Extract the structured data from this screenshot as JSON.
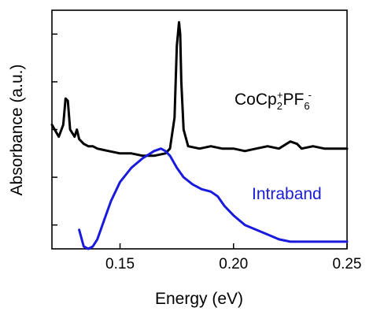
{
  "chart_data": {
    "type": "line",
    "title": "",
    "xlabel": "Energy (eV)",
    "ylabel": "Absorbance (a.u.)",
    "xlim": [
      0.12,
      0.25
    ],
    "ylim": [
      0,
      1
    ],
    "x_ticks": [
      0.15,
      0.2,
      0.25
    ],
    "x_tick_labels": [
      "0.15",
      "0.20",
      "0.25"
    ],
    "y_ticks": [
      0.1,
      0.3,
      0.5,
      0.7,
      0.9
    ],
    "y_tick_labels": [],
    "grid": false,
    "legend": "none",
    "series": [
      {
        "name": "CoCp2+PF6-",
        "label_parts": {
          "main": "CoCp",
          "sub1": "2",
          "sup1": "+",
          "mid": "PF",
          "sub2": "6",
          "sup2": "-"
        },
        "color": "#000000",
        "x": [
          0.12,
          0.123,
          0.125,
          0.126,
          0.127,
          0.128,
          0.13,
          0.131,
          0.132,
          0.134,
          0.136,
          0.138,
          0.14,
          0.145,
          0.15,
          0.155,
          0.16,
          0.165,
          0.17,
          0.172,
          0.174,
          0.175,
          0.176,
          0.1765,
          0.177,
          0.178,
          0.18,
          0.185,
          0.19,
          0.195,
          0.2,
          0.205,
          0.21,
          0.215,
          0.22,
          0.225,
          0.228,
          0.23,
          0.235,
          0.24,
          0.245,
          0.25
        ],
        "y": [
          0.52,
          0.47,
          0.52,
          0.63,
          0.62,
          0.5,
          0.47,
          0.5,
          0.46,
          0.44,
          0.43,
          0.43,
          0.42,
          0.41,
          0.4,
          0.4,
          0.39,
          0.39,
          0.4,
          0.42,
          0.55,
          0.85,
          0.95,
          0.9,
          0.7,
          0.5,
          0.43,
          0.42,
          0.43,
          0.42,
          0.42,
          0.41,
          0.42,
          0.43,
          0.42,
          0.45,
          0.44,
          0.42,
          0.43,
          0.42,
          0.42,
          0.42
        ]
      },
      {
        "name": "Intraband",
        "color": "#1a1adc",
        "x": [
          0.132,
          0.134,
          0.136,
          0.138,
          0.14,
          0.143,
          0.146,
          0.15,
          0.155,
          0.16,
          0.165,
          0.168,
          0.17,
          0.172,
          0.175,
          0.178,
          0.182,
          0.186,
          0.19,
          0.193,
          0.196,
          0.2,
          0.205,
          0.21,
          0.215,
          0.22,
          0.225,
          0.23,
          0.235,
          0.24,
          0.245,
          0.25
        ],
        "y": [
          0.08,
          0.01,
          0.0,
          0.01,
          0.04,
          0.12,
          0.2,
          0.28,
          0.34,
          0.38,
          0.41,
          0.42,
          0.41,
          0.39,
          0.34,
          0.3,
          0.27,
          0.25,
          0.24,
          0.22,
          0.18,
          0.14,
          0.1,
          0.08,
          0.06,
          0.04,
          0.03,
          0.03,
          0.03,
          0.03,
          0.03,
          0.03
        ]
      }
    ],
    "series_labels": [
      {
        "text": "Intraband",
        "color": "#1a1adc"
      }
    ]
  }
}
